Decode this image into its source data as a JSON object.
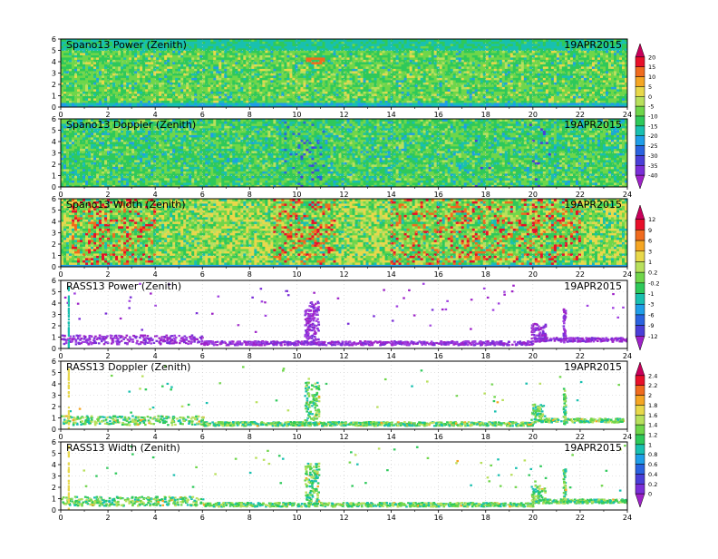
{
  "figure": {
    "date": "19APR2015",
    "x_axis": {
      "range": [
        0,
        24
      ],
      "tick_labels": [
        "0",
        "2",
        "4",
        "6",
        "8",
        "10",
        "12",
        "14",
        "16",
        "18",
        "20",
        "22",
        "24"
      ]
    },
    "y_axis": {
      "range": [
        0,
        6
      ],
      "tick_labels": [
        "0",
        "1",
        "2",
        "3",
        "4",
        "5",
        "6"
      ]
    },
    "grid": "dotted"
  },
  "chart_data": [
    {
      "type": "heatmap",
      "title": "Spano13 Power (Zenith)",
      "date": "19APR2015",
      "colorbar": "cb1",
      "field": "spano_power"
    },
    {
      "type": "heatmap",
      "title": "Spano13 Doppler (Zenith)",
      "date": "19APR2015",
      "colorbar": "cb1",
      "field": "spano_doppler"
    },
    {
      "type": "heatmap",
      "title": "Spano13 Width (Zenith)",
      "date": "19APR2015",
      "colorbar": "cb2",
      "field": "spano_width"
    },
    {
      "type": "scatter",
      "title": "RASS13 Power (Zenith)",
      "date": "19APR2015",
      "colorbar": "cb2",
      "field": "rass_power"
    },
    {
      "type": "scatter",
      "title": "RASS13 Doppler (Zenith)",
      "date": "19APR2015",
      "colorbar": "cb3",
      "field": "rass_doppler"
    },
    {
      "type": "scatter",
      "title": "RASS13 Width (Zenith)",
      "date": "19APR2015",
      "colorbar": "cb3",
      "field": "rass_width"
    }
  ],
  "colorbars": {
    "cb1": {
      "labels": [
        "20",
        "15",
        "10",
        "5",
        "0",
        "-5",
        "-10",
        "-15",
        "-20",
        "-25",
        "-30",
        "-35",
        "-40"
      ],
      "colors": [
        "#c8005a",
        "#e8102a",
        "#f06b1e",
        "#f5a623",
        "#e8d84a",
        "#b8e05c",
        "#6fd64a",
        "#2ec95a",
        "#19c0b0",
        "#1f9ee8",
        "#2a63e0",
        "#4a3fd8",
        "#7a2fd8",
        "#9e22c8"
      ]
    },
    "cb2": {
      "labels": [
        "12",
        "9",
        "6",
        "3",
        "1",
        "0.2",
        "-0.2",
        "-1",
        "-3",
        "-6",
        "-9",
        "-12"
      ],
      "colors": [
        "#c8005a",
        "#e8102a",
        "#f06b1e",
        "#f5a623",
        "#e8d84a",
        "#b8e05c",
        "#6fd64a",
        "#2ec95a",
        "#19c0b0",
        "#1f9ee8",
        "#2a63e0",
        "#4a3fd8",
        "#9e22c8"
      ]
    },
    "cb3": {
      "labels": [
        "2.4",
        "2.2",
        "2",
        "1.8",
        "1.6",
        "1.4",
        "1.2",
        "1",
        "0.8",
        "0.6",
        "0.4",
        "0.2",
        "0"
      ],
      "colors": [
        "#c8005a",
        "#e8102a",
        "#f06b1e",
        "#f5a623",
        "#e8d84a",
        "#b8e05c",
        "#6fd64a",
        "#2ec95a",
        "#19c0b0",
        "#1f9ee8",
        "#2a63e0",
        "#4a3fd8",
        "#7a2fd8",
        "#9e22c8"
      ]
    }
  }
}
